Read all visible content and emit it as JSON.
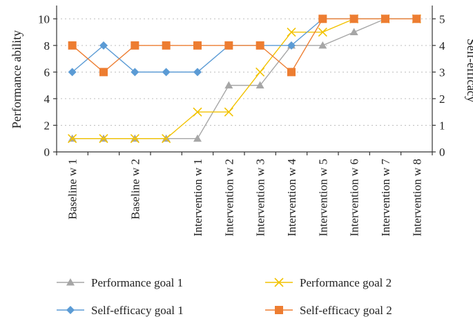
{
  "chart_data": {
    "type": "line",
    "categories": [
      "Baseline w 1",
      "",
      "Baseline w 2",
      "",
      "Intervention w 1",
      "Intervention w 2",
      "Intervention w 3",
      "Intervention w 4",
      "Intervention w 5",
      "Intervention w 6",
      "Intervention w 7",
      "Intervention w 8"
    ],
    "ylabel": "Performance ability",
    "y2label": "Self-efficacy",
    "ylim": [
      0,
      11
    ],
    "y2lim": [
      0,
      5.5
    ],
    "yticks": [
      0,
      2,
      4,
      6,
      8,
      10
    ],
    "y2ticks": [
      0,
      1,
      2,
      3,
      4,
      5
    ],
    "grid": true,
    "legend_position": "bottom",
    "series": [
      {
        "name": "Performance goal 1",
        "axis": "left",
        "marker": "triangle",
        "color": "#a6a6a6",
        "values": [
          1,
          1,
          1,
          1,
          1,
          5,
          5,
          8,
          8,
          9,
          10,
          10
        ]
      },
      {
        "name": "Performance goal 2",
        "axis": "left",
        "marker": "x",
        "color": "#f2c200",
        "values": [
          1,
          1,
          1,
          1,
          3,
          3,
          6,
          9,
          9,
          10,
          10,
          10
        ]
      },
      {
        "name": "Self-efficacy goal 1",
        "axis": "right",
        "marker": "diamond",
        "color": "#5b9bd5",
        "values": [
          3,
          4,
          3,
          3,
          3,
          4,
          4,
          4,
          5,
          5,
          5,
          5
        ]
      },
      {
        "name": "Self-efficacy goal 2",
        "axis": "right",
        "marker": "square",
        "color": "#ed7d31",
        "values": [
          4,
          3,
          4,
          4,
          4,
          4,
          4,
          3,
          5,
          5,
          5,
          5
        ]
      }
    ]
  }
}
